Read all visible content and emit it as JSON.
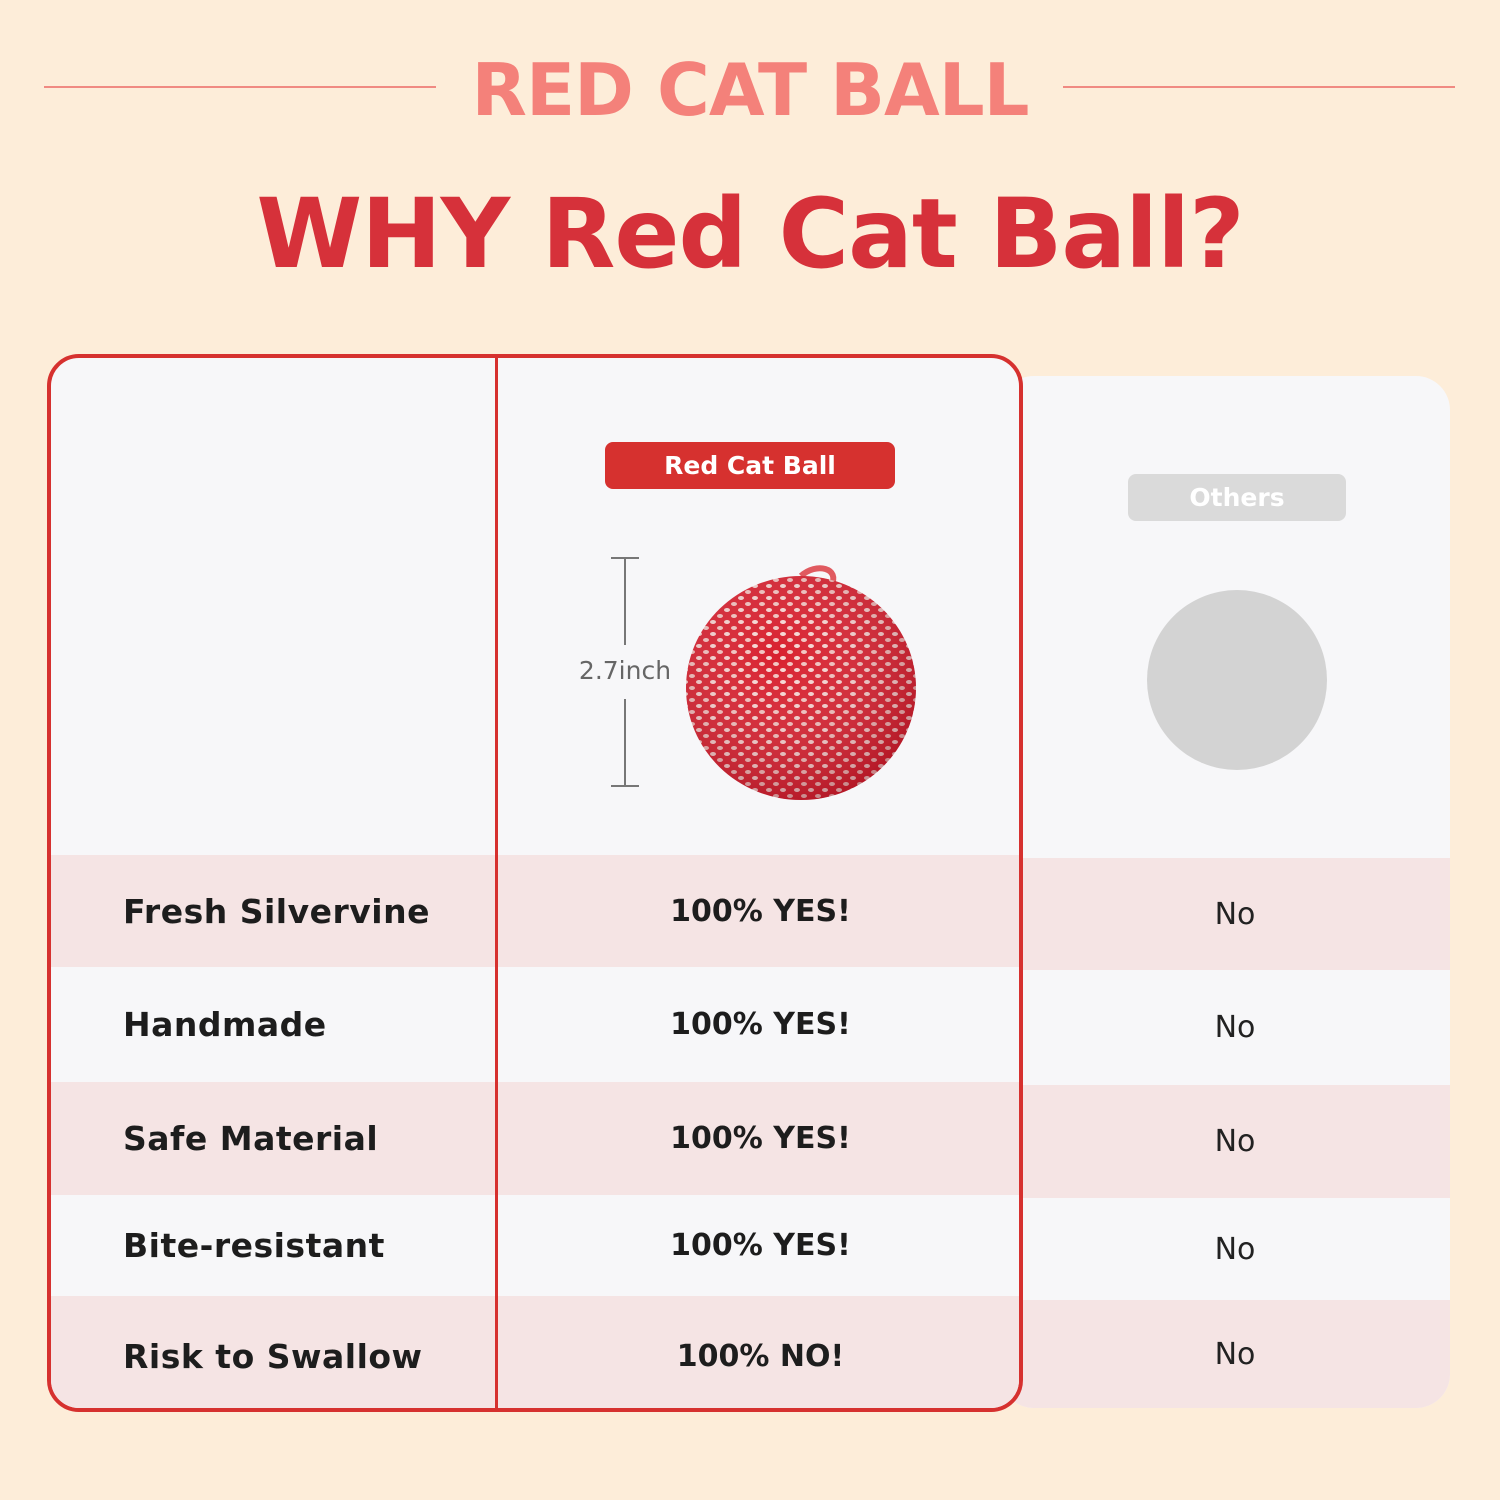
{
  "brand": "RED CAT BALL",
  "headline": "WHY Red Cat Ball?",
  "columns": {
    "ours": "Red Cat Ball",
    "others": "Others"
  },
  "size_label": "2.7inch",
  "rows": [
    {
      "feature": "Fresh Silvervine",
      "ours": "100% YES!",
      "others": "No"
    },
    {
      "feature": "Handmade",
      "ours": "100% YES!",
      "others": "No"
    },
    {
      "feature": "Safe Material",
      "ours": "100% YES!",
      "others": "No"
    },
    {
      "feature": "Bite-resistant",
      "ours": "100% YES!",
      "others": "No"
    },
    {
      "feature": "Risk to Swallow",
      "ours": "100% NO!",
      "others": "No"
    }
  ],
  "colors": {
    "background": "#FDEDD9",
    "accent": "#D6312F",
    "brand_pink": "#F4817A",
    "row_tint": "#F5E4E4",
    "placeholder_gray": "#D3D3D3"
  }
}
